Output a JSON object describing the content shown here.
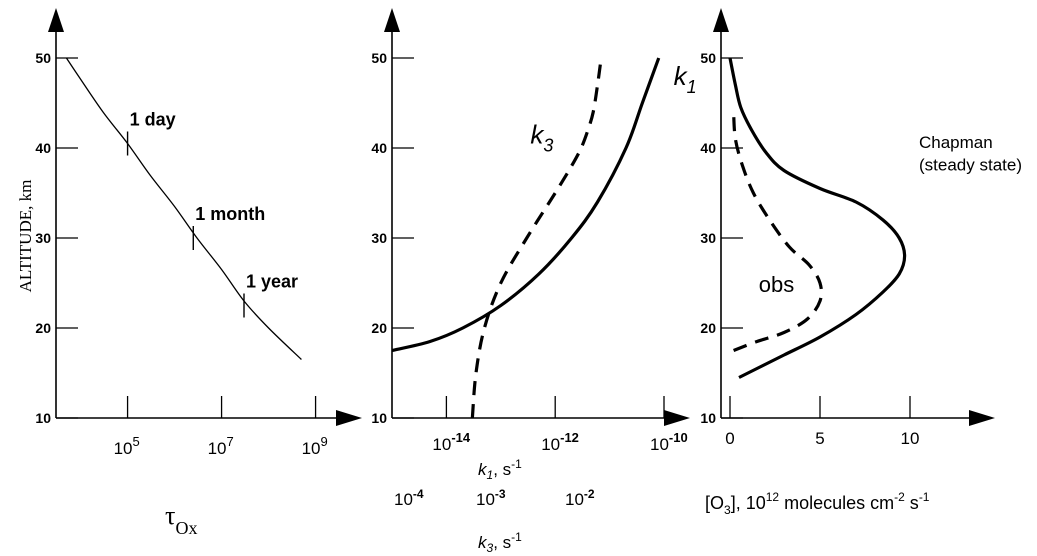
{
  "chart_data": [
    {
      "type": "line",
      "ylabel": "ALTITUDE, km",
      "xlabel": "τOx",
      "xlabel_parts": {
        "base": "τ",
        "sub": "Ox"
      },
      "x_scale": "log",
      "xlim": [
        3000,
        3000000000
      ],
      "ylim": [
        10,
        50
      ],
      "xticks": [
        {
          "value": 100000,
          "exp": "5"
        },
        {
          "value": 10000000,
          "exp": "7"
        },
        {
          "value": 1000000000,
          "exp": "9"
        }
      ],
      "yticks": [
        10,
        20,
        30,
        40,
        50
      ],
      "series": [
        {
          "style": "solid-thin",
          "x": [
            5000,
            9000,
            30000,
            100000,
            300000,
            1000000,
            3000000,
            10000000,
            30000000,
            100000000,
            500000000
          ],
          "y": [
            50,
            48,
            44,
            40.5,
            37,
            33.5,
            30,
            26.5,
            23,
            20,
            16.5
          ]
        }
      ],
      "annotations": [
        {
          "text": "1 day",
          "x": 100000,
          "y": 40.5
        },
        {
          "text": "1 month",
          "x": 2500000,
          "y": 30
        },
        {
          "text": "1 year",
          "x": 30000000,
          "y": 22.5
        }
      ]
    },
    {
      "type": "line",
      "x_scale": "log",
      "xlim": [
        1e-15,
        1e-10
      ],
      "ylim": [
        10,
        50
      ],
      "yticks": [
        10,
        20,
        30,
        40,
        50
      ],
      "xticks": [
        {
          "value": 1e-14,
          "exp": "-14"
        },
        {
          "value": 1e-12,
          "exp": "-12"
        },
        {
          "value": 1e-10,
          "exp": "-10"
        }
      ],
      "xaxis_labels": [
        {
          "axis": "k1",
          "label": "k1, s-1",
          "ticks": [
            "10-14",
            "10-12",
            "10-10"
          ]
        },
        {
          "axis": "k3",
          "label": "k3, s-1",
          "ticks": [
            "10-4",
            "10-3",
            "10-2"
          ]
        }
      ],
      "series": [
        {
          "name": "k1",
          "style": "solid",
          "x": [
            1e-15,
            5e-15,
            2e-14,
            1e-13,
            5e-13,
            2e-12,
            6e-12,
            2e-11,
            4e-11,
            8e-11
          ],
          "y": [
            17.5,
            18.5,
            20,
            22.5,
            26,
            30,
            34,
            40,
            45,
            50
          ]
        },
        {
          "name": "k3",
          "style": "dashed",
          "x": [
            3e-14,
            3.5e-14,
            5e-14,
            1e-13,
            3e-13,
            1e-12,
            2e-12,
            3e-12,
            4e-12,
            5e-12,
            6e-12,
            7e-12
          ],
          "y": [
            10,
            15,
            20,
            25,
            30,
            35,
            38,
            40,
            42,
            44,
            47,
            50
          ]
        }
      ],
      "labels": [
        {
          "text": "k3",
          "x": 3.5e-13,
          "y": 40.5
        },
        {
          "text": "k1",
          "x": 1.5e-10,
          "y": 47
        }
      ]
    },
    {
      "type": "line",
      "xlabel": "[O3], 10^12 molecules cm-2 s-1",
      "xlim": [
        -0.5,
        15
      ],
      "ylim": [
        10,
        50
      ],
      "xticks": [
        0,
        5,
        10
      ],
      "yticks": [
        10,
        20,
        30,
        40,
        50
      ],
      "series": [
        {
          "name": "Chapman (steady state)",
          "style": "solid",
          "x": [
            0.5,
            1.5,
            3,
            5,
            7,
            8.5,
            9.4,
            9.7,
            9.4,
            8.5,
            7,
            5,
            3,
            2,
            1.2,
            0.6,
            0.3,
            0
          ],
          "y": [
            14.5,
            15.5,
            17,
            19,
            21.5,
            24,
            26,
            28,
            30,
            32,
            34,
            35.5,
            37.5,
            39.5,
            42,
            44.5,
            47,
            50
          ]
        },
        {
          "name": "obs",
          "style": "dashed",
          "x": [
            0.2,
            1.5,
            3,
            4.3,
            5,
            5,
            4.4,
            3.3,
            2.2,
            1.3,
            0.7,
            0.3,
            0.2
          ],
          "y": [
            17.5,
            18.5,
            19.5,
            21,
            23,
            25,
            27,
            29,
            32,
            35,
            38,
            41,
            44
          ]
        }
      ],
      "labels": [
        {
          "text": "Chapman",
          "x": 10.5,
          "y": 40
        },
        {
          "text": "(steady state)",
          "x": 10.5,
          "y": 37.5
        },
        {
          "text": "obs",
          "x": 1.6,
          "y": 24
        }
      ]
    }
  ]
}
